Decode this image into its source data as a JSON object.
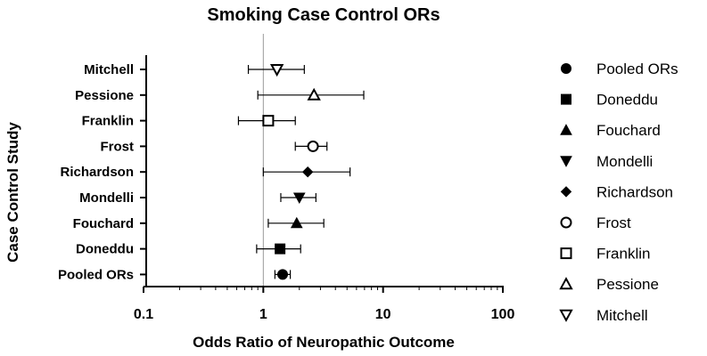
{
  "chart_data": {
    "type": "forest",
    "title": "Smoking Case Control ORs",
    "xlabel": "Odds Ratio of Neuropathic Outcome",
    "ylabel": "Case Control Study",
    "x_scale": "log",
    "xlim": [
      0.1,
      100
    ],
    "x_ticks": [
      {
        "value": 0.1,
        "label": "0.1"
      },
      {
        "value": 1,
        "label": "1"
      },
      {
        "value": 10,
        "label": "10"
      },
      {
        "value": 100,
        "label": "100"
      }
    ],
    "reference_line": 1,
    "grid": false,
    "legend_position": "right",
    "series": [
      {
        "name": "Mitchell",
        "marker": "triangle-down-open",
        "or": 1.3,
        "ci": [
          0.75,
          2.2
        ]
      },
      {
        "name": "Pessione",
        "marker": "triangle-up-open",
        "or": 2.65,
        "ci": [
          0.9,
          6.9
        ]
      },
      {
        "name": "Franklin",
        "marker": "square-open",
        "or": 1.1,
        "ci": [
          0.62,
          1.85
        ]
      },
      {
        "name": "Frost",
        "marker": "circle-open",
        "or": 2.6,
        "ci": [
          1.85,
          3.4
        ]
      },
      {
        "name": "Richardson",
        "marker": "diamond-filled",
        "or": 2.35,
        "ci": [
          1.0,
          5.3
        ]
      },
      {
        "name": "Mondelli",
        "marker": "triangle-down-filled",
        "or": 2.0,
        "ci": [
          1.4,
          2.75
        ]
      },
      {
        "name": "Fouchard",
        "marker": "triangle-up-filled",
        "or": 1.9,
        "ci": [
          1.1,
          3.2
        ]
      },
      {
        "name": "Doneddu",
        "marker": "square-filled",
        "or": 1.38,
        "ci": [
          0.88,
          2.05
        ]
      },
      {
        "name": "Pooled ORs",
        "marker": "circle-filled",
        "or": 1.45,
        "ci": [
          1.25,
          1.68
        ]
      }
    ],
    "legend": [
      {
        "label": "Pooled ORs",
        "marker": "circle-filled"
      },
      {
        "label": "Doneddu",
        "marker": "square-filled"
      },
      {
        "label": "Fouchard",
        "marker": "triangle-up-filled"
      },
      {
        "label": "Mondelli",
        "marker": "triangle-down-filled"
      },
      {
        "label": "Richardson",
        "marker": "diamond-filled"
      },
      {
        "label": "Frost",
        "marker": "circle-open"
      },
      {
        "label": "Franklin",
        "marker": "square-open"
      },
      {
        "label": "Pessione",
        "marker": "triangle-up-open"
      },
      {
        "label": "Mitchell",
        "marker": "triangle-down-open"
      }
    ]
  }
}
